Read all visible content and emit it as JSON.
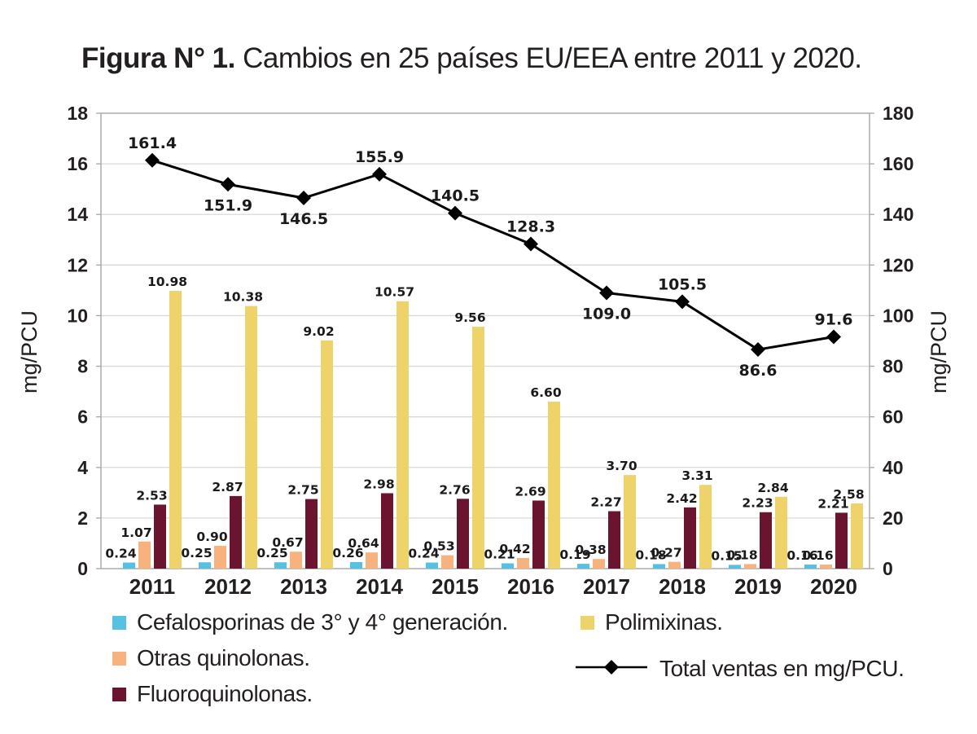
{
  "figure": {
    "title_bold": "Figura N° 1.",
    "title_rest": " Cambios en 25 países EU/EEA entre 2011 y 2020."
  },
  "chart_data": {
    "type": "bar+line",
    "title": "Figura N° 1. Cambios en 25 países EU/EEA entre 2011 y 2020.",
    "categories": [
      "2011",
      "2012",
      "2013",
      "2014",
      "2015",
      "2016",
      "2017",
      "2018",
      "2019",
      "2020"
    ],
    "left_axis": {
      "label": "mg/PCU",
      "min": 0,
      "max": 18,
      "step": 2
    },
    "right_axis": {
      "label": "mg/PCU",
      "min": 0,
      "max": 180,
      "step": 20
    },
    "grid": true,
    "legend_position": "bottom",
    "bar_series": [
      {
        "name": "Cefalosporinas de 3° y 4° generación.",
        "color": "#56c1e1",
        "axis": "left",
        "values": [
          "0.24",
          "0.25",
          "0.25",
          "0.26",
          "0.24",
          "0.21",
          "0.19",
          "0.18",
          "0.15",
          "0.16"
        ]
      },
      {
        "name": "Otras quinolonas.",
        "color": "#f8b27e",
        "axis": "left",
        "values": [
          "1.07",
          "0.90",
          "0.67",
          "0.64",
          "0.53",
          "0.42",
          "0.38",
          "0.27",
          "0.18",
          "0.16"
        ]
      },
      {
        "name": "Fluoroquinolonas.",
        "color": "#6a142f",
        "axis": "left",
        "values": [
          "2.53",
          "2.87",
          "2.75",
          "2.98",
          "2.76",
          "2.69",
          "2.27",
          "2.42",
          "2.23",
          "2.21"
        ]
      },
      {
        "name": "Polimixinas.",
        "color": "#eed26a",
        "axis": "left",
        "values": [
          "10.98",
          "10.38",
          "9.02",
          "10.57",
          "9.56",
          "6.60",
          "3.70",
          "3.31",
          "2.84",
          "2.58"
        ]
      }
    ],
    "line_series": {
      "name": "Total ventas en mg/PCU.",
      "color": "#000000",
      "axis": "right",
      "values": [
        "161.4",
        "151.9",
        "146.5",
        "155.9",
        "140.5",
        "128.3",
        "109.0",
        "105.5",
        "86.6",
        "91.6"
      ],
      "label_pos": [
        "above",
        "below",
        "below",
        "above",
        "above",
        "above",
        "below",
        "above",
        "below",
        "above"
      ]
    }
  }
}
